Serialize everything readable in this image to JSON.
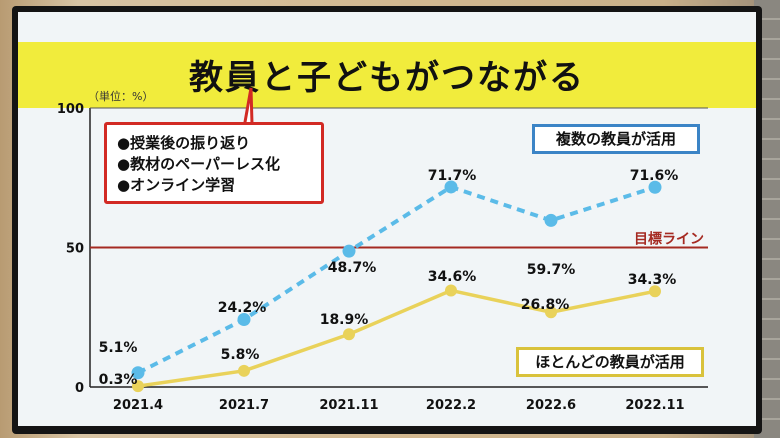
{
  "title": "教員と子どもがつながる",
  "unit_label": "（単位：%）",
  "callout_items": [
    "●授業後の振り返り",
    "●教材のペーパーレス化",
    "●オンライン学習"
  ],
  "legend": {
    "multiple": "複数の教員が活用",
    "most": "ほとんどの教員が活用"
  },
  "target_label": "目標ライン",
  "colors": {
    "multiple": "#5bbbe8",
    "most": "#e9d25a",
    "target": "#a52a22"
  },
  "chart_data": {
    "type": "line",
    "title": "教員と子どもがつながる",
    "ylabel": "（単位：%）",
    "categories": [
      "2021.4",
      "2021.7",
      "2021.11",
      "2022.2",
      "2022.6",
      "2022.11"
    ],
    "yticks": [
      "0",
      "50",
      "100"
    ],
    "ylim": [
      0,
      100
    ],
    "target": 50,
    "series": [
      {
        "name": "複数の教員が活用",
        "values": [
          5.1,
          24.2,
          48.7,
          71.7,
          59.7,
          71.6
        ],
        "labels": [
          "5.1%",
          "24.2%",
          "48.7%",
          "71.7%",
          "59.7%",
          "71.6%"
        ]
      },
      {
        "name": "ほとんどの教員が活用",
        "values": [
          0.3,
          5.8,
          18.9,
          34.6,
          26.8,
          34.3
        ],
        "labels": [
          "0.3%",
          "5.8%",
          "18.9%",
          "34.6%",
          "26.8%",
          "34.3%"
        ]
      }
    ]
  }
}
